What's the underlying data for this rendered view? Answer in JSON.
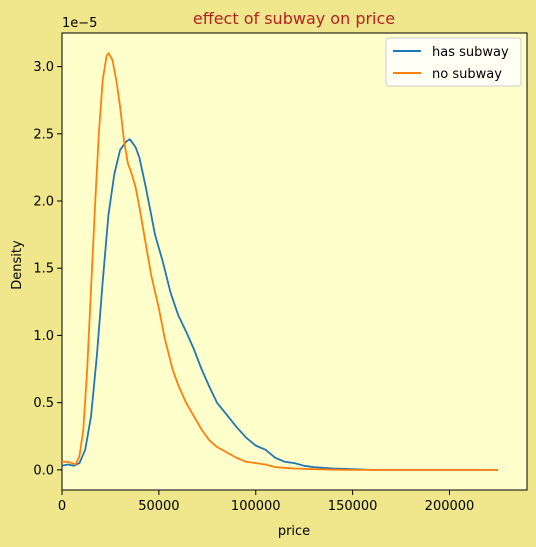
{
  "colors": {
    "figure_background": "#f0e68c",
    "plot_background": "#ffffcc",
    "title": "#b22222",
    "axis": "#000000",
    "has_subway": "#1f77b4",
    "no_subway": "#ff7f0e"
  },
  "chart_data": {
    "type": "line",
    "title": "effect of subway on price",
    "xlabel": "price",
    "ylabel": "Density",
    "y_offset_label": "1e−5",
    "y_scale_factor": 1e-05,
    "xlim": [
      0,
      240000
    ],
    "ylim": [
      -0.15,
      3.25
    ],
    "x_ticks": [
      0,
      50000,
      100000,
      150000,
      200000
    ],
    "x_tick_labels": [
      "0",
      "50000",
      "100000",
      "150000",
      "200000"
    ],
    "y_ticks": [
      0.0,
      0.5,
      1.0,
      1.5,
      2.0,
      2.5,
      3.0
    ],
    "y_tick_labels": [
      "0.0",
      "0.5",
      "1.0",
      "1.5",
      "2.0",
      "2.5",
      "3.0"
    ],
    "grid": false,
    "legend_position": "top-right",
    "series": [
      {
        "name": "has subway",
        "color": "#1f77b4",
        "points": [
          [
            0,
            0.03
          ],
          [
            3000,
            0.04
          ],
          [
            6000,
            0.03
          ],
          [
            9000,
            0.05
          ],
          [
            12000,
            0.15
          ],
          [
            15000,
            0.4
          ],
          [
            18000,
            0.85
          ],
          [
            21000,
            1.4
          ],
          [
            24000,
            1.9
          ],
          [
            27000,
            2.2
          ],
          [
            30000,
            2.38
          ],
          [
            33000,
            2.44
          ],
          [
            35000,
            2.46
          ],
          [
            38000,
            2.4
          ],
          [
            40000,
            2.32
          ],
          [
            43000,
            2.12
          ],
          [
            46000,
            1.9
          ],
          [
            48000,
            1.75
          ],
          [
            52000,
            1.55
          ],
          [
            56000,
            1.32
          ],
          [
            60000,
            1.15
          ],
          [
            64000,
            1.03
          ],
          [
            68000,
            0.9
          ],
          [
            72000,
            0.75
          ],
          [
            76000,
            0.62
          ],
          [
            80000,
            0.5
          ],
          [
            85000,
            0.41
          ],
          [
            90000,
            0.32
          ],
          [
            95000,
            0.24
          ],
          [
            100000,
            0.18
          ],
          [
            105000,
            0.15
          ],
          [
            110000,
            0.09
          ],
          [
            115000,
            0.06
          ],
          [
            120000,
            0.05
          ],
          [
            125000,
            0.03
          ],
          [
            130000,
            0.02
          ],
          [
            140000,
            0.01
          ],
          [
            150000,
            0.005
          ],
          [
            160000,
            0.0
          ],
          [
            180000,
            0.0
          ],
          [
            200000,
            0.0
          ],
          [
            225000,
            0.0
          ]
        ]
      },
      {
        "name": "no subway",
        "color": "#ff7f0e",
        "points": [
          [
            0,
            0.06
          ],
          [
            3000,
            0.06
          ],
          [
            5000,
            0.05
          ],
          [
            7000,
            0.04
          ],
          [
            9000,
            0.1
          ],
          [
            11000,
            0.3
          ],
          [
            13000,
            0.75
          ],
          [
            15000,
            1.35
          ],
          [
            17000,
            1.95
          ],
          [
            19000,
            2.5
          ],
          [
            21000,
            2.9
          ],
          [
            23000,
            3.08
          ],
          [
            24000,
            3.1
          ],
          [
            26000,
            3.05
          ],
          [
            28000,
            2.9
          ],
          [
            30000,
            2.7
          ],
          [
            32000,
            2.45
          ],
          [
            34000,
            2.28
          ],
          [
            36000,
            2.2
          ],
          [
            38000,
            2.1
          ],
          [
            40000,
            1.95
          ],
          [
            43000,
            1.7
          ],
          [
            46000,
            1.45
          ],
          [
            50000,
            1.2
          ],
          [
            53000,
            0.98
          ],
          [
            57000,
            0.75
          ],
          [
            60000,
            0.63
          ],
          [
            64000,
            0.5
          ],
          [
            68000,
            0.4
          ],
          [
            72000,
            0.3
          ],
          [
            76000,
            0.22
          ],
          [
            80000,
            0.17
          ],
          [
            85000,
            0.13
          ],
          [
            90000,
            0.09
          ],
          [
            95000,
            0.06
          ],
          [
            100000,
            0.05
          ],
          [
            105000,
            0.04
          ],
          [
            110000,
            0.02
          ],
          [
            115000,
            0.015
          ],
          [
            120000,
            0.01
          ],
          [
            130000,
            0.005
          ],
          [
            145000,
            0.0
          ],
          [
            160000,
            0.0
          ],
          [
            180000,
            0.0
          ],
          [
            200000,
            0.0
          ],
          [
            225000,
            0.0
          ]
        ]
      }
    ]
  }
}
